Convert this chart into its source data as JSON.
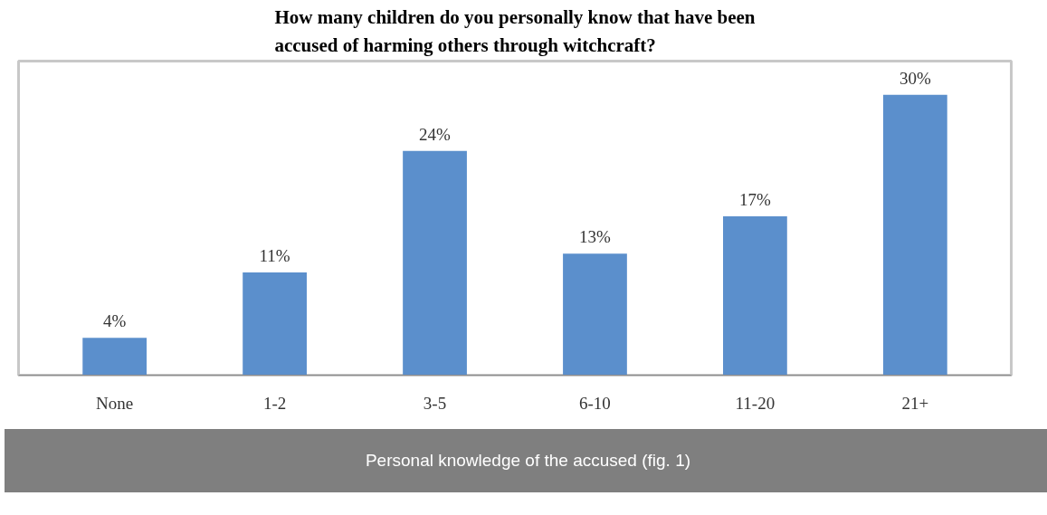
{
  "chart_data": {
    "type": "bar",
    "title": "How many children do you personally know that have been accused of harming others through witchcraft?",
    "categories": [
      "None",
      "1-2",
      "3-5",
      "6-10",
      "11-20",
      "21+"
    ],
    "values": [
      4,
      11,
      24,
      13,
      17,
      30
    ],
    "value_labels": [
      "4%",
      "11%",
      "24%",
      "13%",
      "17%",
      "30%"
    ],
    "color": "#5b8fcc",
    "annotations": [
      "Personal knowledge of the accused (fig. 1)"
    ]
  }
}
